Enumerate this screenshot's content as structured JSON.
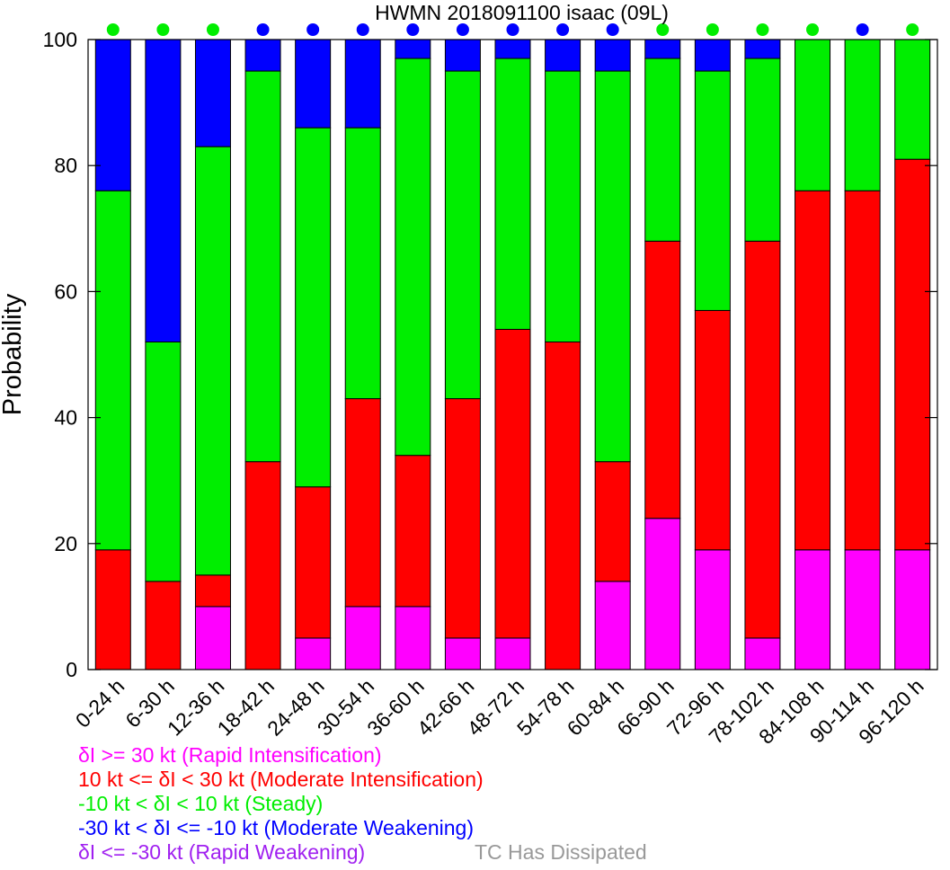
{
  "chart_data": {
    "type": "bar",
    "stacked": true,
    "title": "HWMN 2018091100 isaac (09L)",
    "xlabel": "",
    "ylabel": "Probability",
    "ylim": [
      0,
      100
    ],
    "yticks": [
      0,
      20,
      40,
      60,
      80,
      100
    ],
    "grid": false,
    "categories": [
      "0-24 h",
      "6-30 h",
      "12-36 h",
      "18-42 h",
      "24-48 h",
      "30-54 h",
      "36-60 h",
      "42-66 h",
      "48-72 h",
      "54-78 h",
      "60-84 h",
      "66-90 h",
      "72-96 h",
      "78-102 h",
      "84-108 h",
      "90-114 h",
      "96-120 h"
    ],
    "series": [
      {
        "key": "ri",
        "color": "#ff00ff",
        "values": [
          0,
          0,
          10,
          0,
          5,
          10,
          10,
          5,
          5,
          0,
          14,
          24,
          19,
          5,
          19,
          19,
          19
        ]
      },
      {
        "key": "mi",
        "color": "#ff0000",
        "values": [
          19,
          14,
          5,
          33,
          24,
          33,
          24,
          38,
          49,
          52,
          19,
          44,
          38,
          63,
          57,
          57,
          62
        ]
      },
      {
        "key": "st",
        "color": "#00ee00",
        "values": [
          57,
          38,
          68,
          62,
          57,
          43,
          63,
          52,
          43,
          43,
          62,
          29,
          38,
          29,
          24,
          24,
          19
        ]
      },
      {
        "key": "mw",
        "color": "#0000ff",
        "values": [
          24,
          48,
          17,
          5,
          14,
          14,
          3,
          5,
          3,
          5,
          5,
          3,
          5,
          3,
          0,
          0,
          0
        ]
      }
    ],
    "top_markers": [
      "#00ee00",
      "#00ee00",
      "#00ee00",
      "#0000ff",
      "#0000ff",
      "#0000ff",
      "#0000ff",
      "#0000ff",
      "#0000ff",
      "#0000ff",
      "#0000ff",
      "#00ee00",
      "#00ee00",
      "#00ee00",
      "#00ee00",
      "#0000ff",
      "#00ee00"
    ]
  },
  "legend": [
    {
      "text": "δI >= 30 kt (Rapid Intensification)",
      "color": "#ff00ff"
    },
    {
      "text": "10 kt <= δI < 30 kt (Moderate Intensification)",
      "color": "#ff0000"
    },
    {
      "text": "-10 kt < δI < 10 kt (Steady)",
      "color": "#00ee00"
    },
    {
      "text": "-30 kt < δI <= -10 kt (Moderate Weakening)",
      "color": "#0000ff"
    },
    {
      "text": "δI <= -30 kt (Rapid Weakening)",
      "color": "#a020f0"
    }
  ],
  "dissipated_note": {
    "text": "TC Has Dissipated",
    "color": "#999999"
  }
}
